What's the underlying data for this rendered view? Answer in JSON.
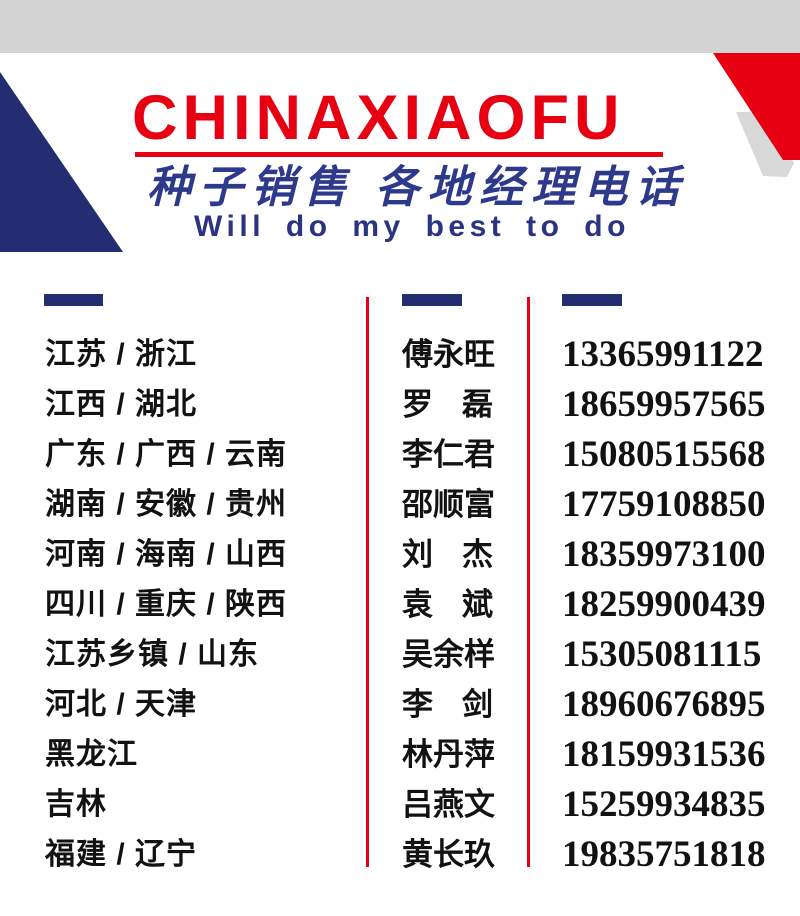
{
  "header": {
    "brand": "CHINAXIAOFU",
    "subtitle_cn": "种子销售 各地经理电话",
    "subtitle_en": "Will do my best to do"
  },
  "colors": {
    "red": "#e60012",
    "navy": "#232d71",
    "ink_blue": "#2d3a8c",
    "slogan_blue": "#2a3480",
    "gray_bar": "#d3d3d3",
    "gray_stripe": "#d8d8d8",
    "text_black": "#121212",
    "background": "#ffffff"
  },
  "contacts": [
    {
      "region": "江苏 / 浙江",
      "name": "傅永旺",
      "phone": "13365991122"
    },
    {
      "region": "江西 / 湖北",
      "name": "罗磊",
      "phone": "18659957565"
    },
    {
      "region": "广东 / 广西 / 云南",
      "name": "李仁君",
      "phone": "15080515568"
    },
    {
      "region": "湖南 / 安徽 / 贵州",
      "name": "邵顺富",
      "phone": "17759108850"
    },
    {
      "region": "河南 / 海南 / 山西",
      "name": "刘杰",
      "phone": "18359973100"
    },
    {
      "region": "四川 / 重庆 / 陕西",
      "name": "袁斌",
      "phone": "18259900439"
    },
    {
      "region": "江苏乡镇 / 山东",
      "name": "吴余样",
      "phone": "15305081115"
    },
    {
      "region": "河北 / 天津",
      "name": "李剑",
      "phone": "18960676895"
    },
    {
      "region": "黑龙江",
      "name": "林丹萍",
      "phone": "18159931536"
    },
    {
      "region": "吉林",
      "name": "吕燕文",
      "phone": "15259934835"
    },
    {
      "region": "福建 / 辽宁",
      "name": "黄长玖",
      "phone": "19835751818"
    }
  ]
}
